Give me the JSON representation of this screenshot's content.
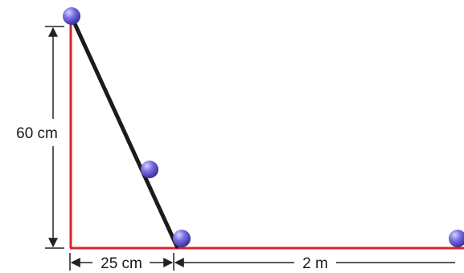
{
  "labels": {
    "height": "60 cm",
    "base_ramp": "25 cm",
    "base_floor": "2 m"
  },
  "colors": {
    "background": "#ffffff",
    "floor_line": "#d7262b",
    "ramp": "#1b1b1b",
    "dimension_line": "#222222",
    "ball_fill": "#6a5fd6",
    "ball_highlight": "#c9c4ff",
    "ball_shadow": "#2f2890"
  },
  "objects": {
    "balls": [
      "ball-top",
      "ball-mid",
      "ball-bottom",
      "ball-far"
    ]
  }
}
